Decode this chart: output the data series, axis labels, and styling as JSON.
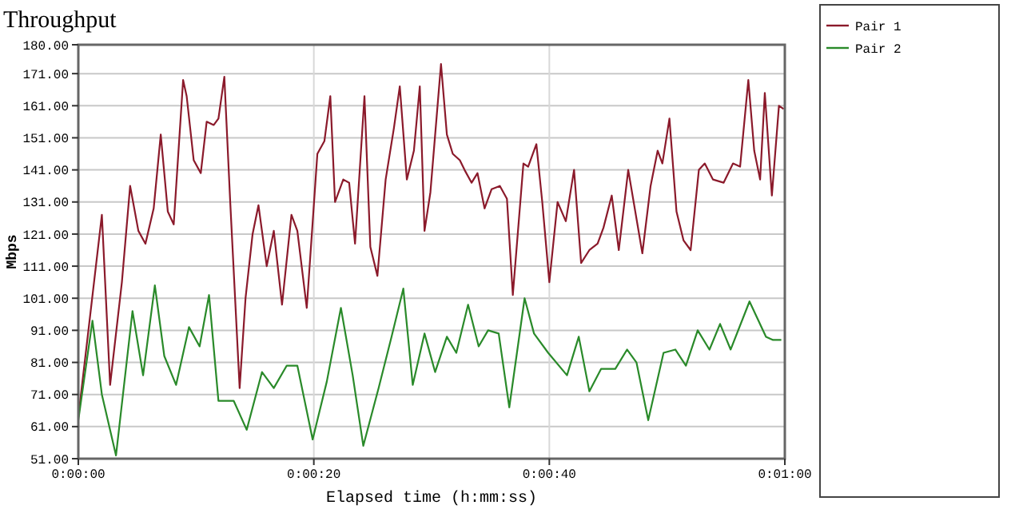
{
  "chart_data": {
    "type": "line",
    "title": "Throughput",
    "xlabel": "Elapsed time (h:mm:ss)",
    "ylabel": "Mbps",
    "xlim": [
      0,
      60
    ],
    "xticks": [
      {
        "value": 0,
        "label": "0:00:00"
      },
      {
        "value": 20,
        "label": "0:00:20"
      },
      {
        "value": 40,
        "label": "0:00:40"
      },
      {
        "value": 60,
        "label": "0:01:00"
      }
    ],
    "ylim": [
      51,
      180
    ],
    "yticks": [
      {
        "value": 51,
        "label": "51.00"
      },
      {
        "value": 61,
        "label": "61.00"
      },
      {
        "value": 71,
        "label": "71.00"
      },
      {
        "value": 81,
        "label": "81.00"
      },
      {
        "value": 91,
        "label": "91.00"
      },
      {
        "value": 101,
        "label": "101.00"
      },
      {
        "value": 111,
        "label": "111.00"
      },
      {
        "value": 121,
        "label": "121.00"
      },
      {
        "value": 131,
        "label": "131.00"
      },
      {
        "value": 141,
        "label": "141.00"
      },
      {
        "value": 151,
        "label": "151.00"
      },
      {
        "value": 161,
        "label": "161.00"
      },
      {
        "value": 171,
        "label": "171.00"
      },
      {
        "value": 180,
        "label": "180.00"
      }
    ],
    "grid": true,
    "legend": "right",
    "marker": "none",
    "line_style": "solid",
    "series": [
      {
        "name": "Pair 1",
        "color": "#8b1a2b",
        "x": [
          0,
          2.0,
          2.7,
          3.7,
          4.4,
          5.1,
          5.7,
          6.4,
          7.0,
          7.6,
          8.1,
          8.9,
          9.2,
          9.8,
          10.4,
          10.9,
          11.5,
          11.9,
          12.4,
          12.9,
          13.7,
          14.2,
          14.8,
          15.3,
          16.0,
          16.6,
          17.3,
          18.1,
          18.6,
          19.4,
          20.3,
          20.9,
          21.4,
          21.8,
          22.5,
          23.0,
          23.5,
          24.3,
          24.8,
          25.4,
          26.1,
          26.8,
          27.3,
          27.9,
          28.5,
          29.0,
          29.4,
          29.9,
          30.8,
          31.3,
          31.8,
          32.4,
          32.8,
          33.4,
          33.9,
          34.5,
          35.1,
          35.8,
          36.4,
          36.9,
          37.8,
          38.2,
          38.9,
          39.4,
          40.0,
          40.7,
          41.4,
          42.1,
          42.7,
          43.4,
          44.1,
          44.6,
          45.3,
          45.9,
          46.7,
          47.9,
          48.6,
          49.2,
          49.6,
          50.2,
          50.8,
          51.4,
          52.0,
          52.7,
          53.2,
          53.9,
          54.8,
          55.6,
          56.2,
          56.9,
          57.4,
          57.9,
          58.3,
          58.9,
          59.5,
          59.9
        ],
        "values": [
          64,
          127,
          74,
          106,
          136,
          122,
          118,
          129,
          152,
          128,
          124,
          169,
          164,
          144,
          140,
          156,
          155,
          157,
          170,
          131,
          73,
          101,
          121,
          130,
          111,
          122,
          99,
          127,
          122,
          98,
          146,
          150,
          164,
          131,
          138,
          137,
          118,
          164,
          117,
          108,
          138,
          154,
          167,
          138,
          147,
          167,
          122,
          134,
          174,
          152,
          146,
          144,
          141,
          137,
          140,
          129,
          135,
          136,
          132,
          102,
          143,
          142,
          149,
          131,
          106,
          131,
          125,
          141,
          112,
          116,
          118,
          123,
          133,
          116,
          141,
          115,
          136,
          147,
          143,
          157,
          128,
          119,
          116,
          141,
          143,
          138,
          137,
          143,
          142,
          169,
          147,
          138,
          165,
          133,
          161,
          160
        ]
      },
      {
        "name": "Pair 2",
        "color": "#2a8a2a",
        "x": [
          0,
          1.2,
          2.0,
          3.2,
          4.6,
          5.5,
          6.5,
          7.3,
          8.3,
          9.4,
          10.3,
          11.1,
          11.9,
          13.2,
          14.3,
          15.6,
          16.6,
          17.7,
          18.6,
          19.9,
          21.1,
          22.3,
          23.3,
          24.2,
          25.5,
          26.6,
          27.6,
          28.4,
          29.4,
          30.3,
          31.3,
          32.1,
          33.1,
          34.0,
          34.8,
          35.7,
          36.6,
          37.9,
          38.7,
          39.9,
          41.5,
          42.5,
          43.4,
          44.4,
          45.6,
          46.6,
          47.4,
          48.4,
          49.7,
          50.7,
          51.6,
          52.6,
          53.6,
          54.5,
          55.4,
          57.0,
          58.4,
          59.0,
          59.7
        ],
        "values": [
          63,
          94,
          71,
          52,
          97,
          77,
          105,
          83,
          74,
          92,
          86,
          102,
          69,
          69,
          60,
          78,
          73,
          80,
          80,
          57,
          75,
          98,
          77,
          55,
          73,
          89,
          104,
          74,
          90,
          78,
          89,
          84,
          99,
          86,
          91,
          90,
          67,
          101,
          90,
          84,
          77,
          89,
          72,
          79,
          79,
          85,
          81,
          63,
          84,
          85,
          80,
          91,
          85,
          93,
          85,
          100,
          89,
          88,
          88
        ]
      }
    ]
  }
}
